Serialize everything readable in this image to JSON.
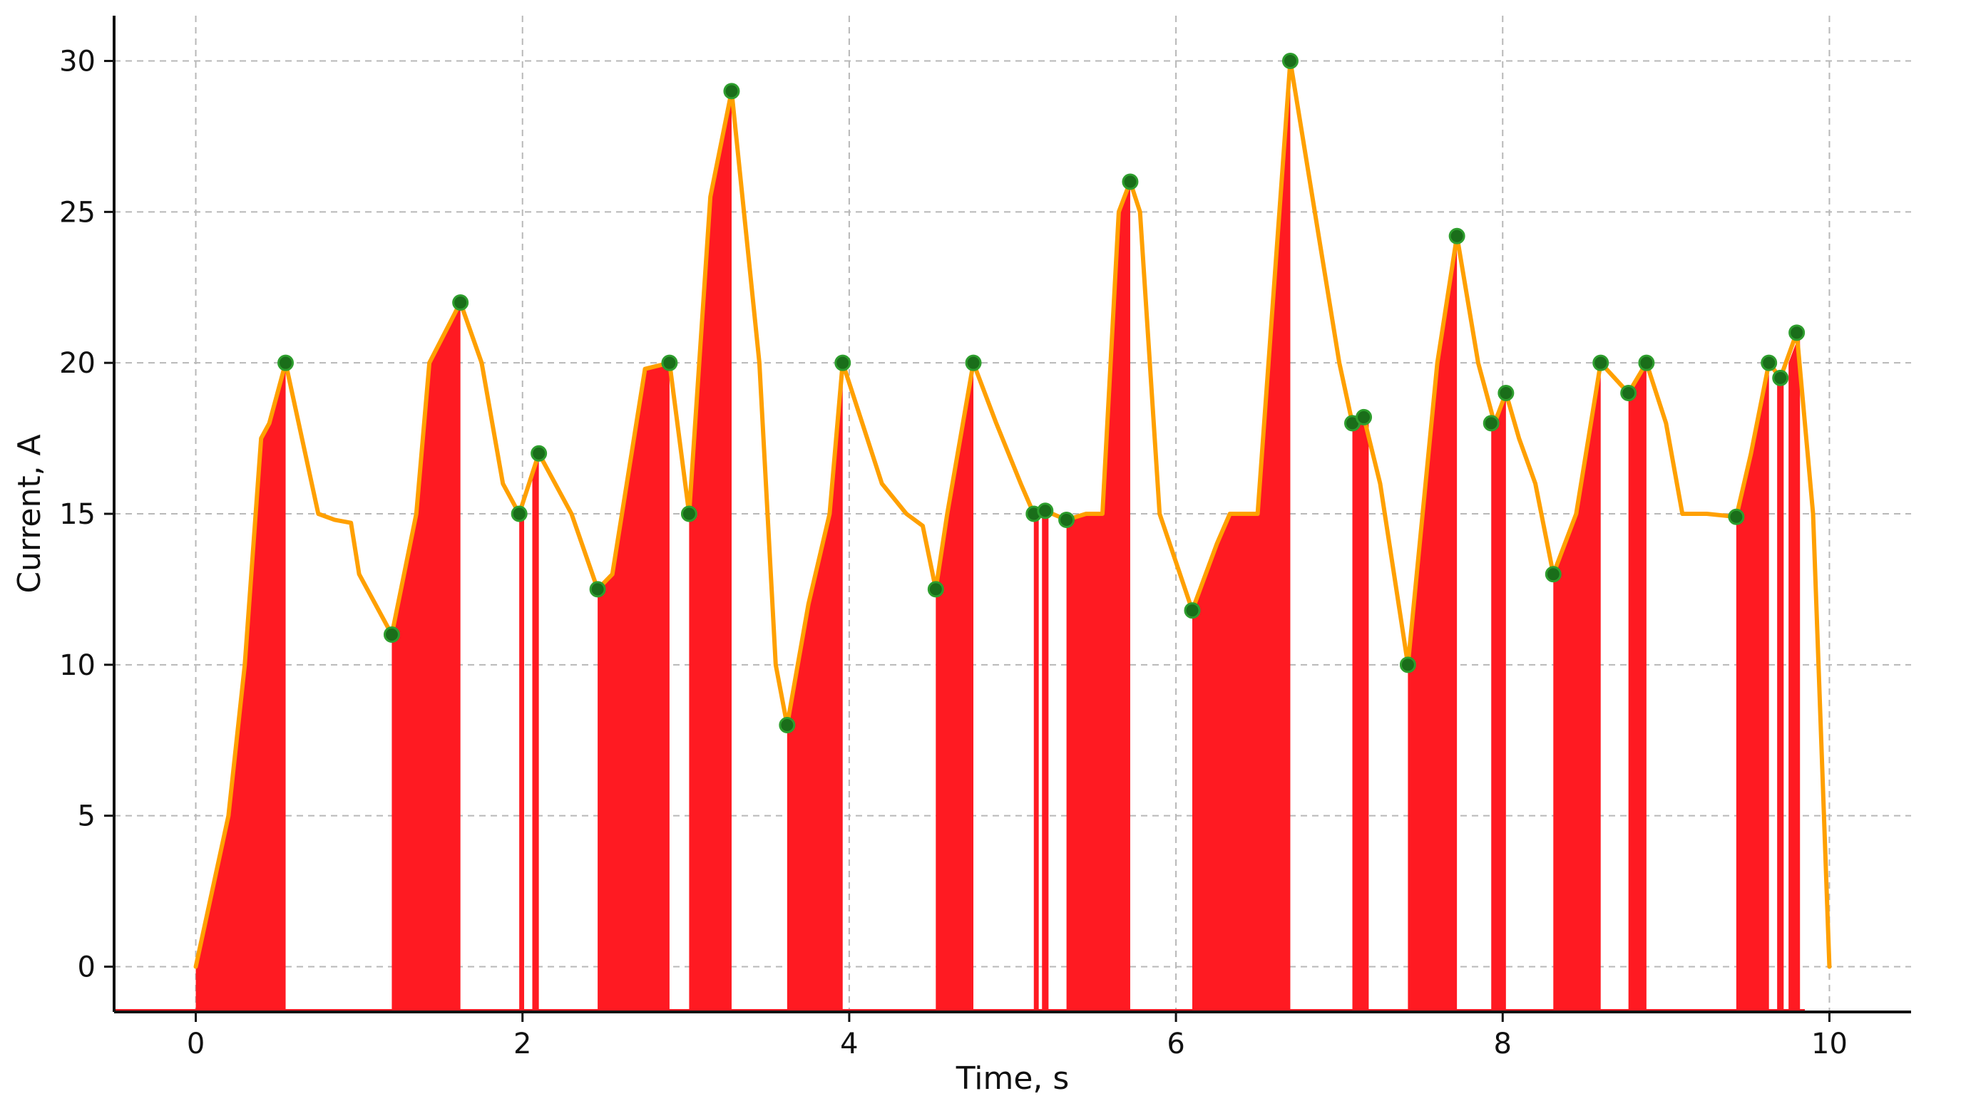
{
  "chart_data": {
    "type": "line",
    "title": "",
    "xlabel": "Time, s",
    "ylabel": "Current, A",
    "xlim": [
      -0.5,
      10.5
    ],
    "ylim": [
      -1.5,
      31.5
    ],
    "xticks": [
      0,
      2,
      4,
      6,
      8,
      10
    ],
    "xtick_labels": [
      "0",
      "2",
      "4",
      "6",
      "8",
      "10"
    ],
    "yticks": [
      0,
      5,
      10,
      15,
      20,
      25,
      30
    ],
    "ytick_labels": [
      "0",
      "5",
      "10",
      "15",
      "20",
      "25",
      "30"
    ],
    "grid": true,
    "legend": "none",
    "series": [
      {
        "kind": "line",
        "color": "#FFA000",
        "x": [
          0.0,
          0.1,
          0.2,
          0.3,
          0.4,
          0.45,
          0.55,
          0.65,
          0.75,
          0.85,
          0.95,
          1.0,
          1.1,
          1.2,
          1.35,
          1.43,
          1.62,
          1.75,
          1.88,
          1.98,
          2.1,
          2.3,
          2.46,
          2.55,
          2.75,
          2.9,
          3.02,
          3.15,
          3.28,
          3.45,
          3.55,
          3.62,
          3.75,
          3.88,
          3.96,
          4.05,
          4.2,
          4.35,
          4.45,
          4.53,
          4.6,
          4.76,
          4.9,
          5.05,
          5.13,
          5.2,
          5.33,
          5.45,
          5.55,
          5.65,
          5.72,
          5.78,
          5.9,
          6.1,
          6.25,
          6.33,
          6.5,
          6.7,
          6.85,
          7.0,
          7.08,
          7.15,
          7.25,
          7.42,
          7.6,
          7.72,
          7.85,
          7.95,
          8.02,
          8.1,
          8.2,
          8.31,
          8.45,
          8.6,
          8.77,
          8.88,
          9.0,
          9.1,
          9.25,
          9.43,
          9.52,
          9.63,
          9.7,
          9.8,
          9.9,
          10.0
        ],
        "y": [
          0,
          2.5,
          5,
          10,
          17.5,
          18,
          20,
          17.5,
          15,
          14.8,
          14.7,
          13,
          12,
          11,
          15,
          20,
          22,
          20,
          16,
          15,
          17,
          15,
          12.5,
          13,
          19.8,
          20,
          15,
          25.5,
          29,
          20,
          10,
          8,
          12,
          15,
          20,
          18.5,
          16,
          15,
          14.6,
          12.5,
          15,
          20,
          18,
          16,
          15,
          15.1,
          14.8,
          15,
          15,
          25,
          26,
          25,
          15,
          11.8,
          14,
          15,
          15,
          30,
          25,
          20,
          18,
          18.2,
          16,
          10,
          20,
          24.2,
          20,
          18,
          19,
          17.5,
          16,
          13,
          15,
          20,
          19,
          20,
          18,
          15,
          15,
          14.9,
          17,
          20,
          19.5,
          21,
          15,
          0
        ]
      },
      {
        "kind": "filled_region",
        "color": "#FF1A22",
        "baseline": -1.5,
        "segments": [
          {
            "x": [
              0.0,
              0.1,
              0.2,
              0.3,
              0.4,
              0.45,
              0.55
            ],
            "y": [
              0,
              2.5,
              5,
              10,
              17.5,
              18,
              20
            ]
          },
          {
            "x": [
              1.2,
              1.35,
              1.43,
              1.62
            ],
            "y": [
              11,
              15,
              20,
              22
            ]
          },
          {
            "x": [
              1.98,
              2.01
            ],
            "y": [
              15,
              15
            ]
          },
          {
            "x": [
              2.06,
              2.1
            ],
            "y": [
              16.5,
              17
            ]
          },
          {
            "x": [
              2.46,
              2.55,
              2.75,
              2.9
            ],
            "y": [
              12.5,
              13,
              19.8,
              20
            ]
          },
          {
            "x": [
              3.02,
              3.15,
              3.28
            ],
            "y": [
              15,
              25.5,
              29
            ]
          },
          {
            "x": [
              3.62,
              3.75,
              3.88,
              3.96
            ],
            "y": [
              8,
              12,
              15,
              20
            ]
          },
          {
            "x": [
              4.53,
              4.6,
              4.76
            ],
            "y": [
              12.5,
              15,
              20
            ]
          },
          {
            "x": [
              5.13,
              5.16
            ],
            "y": [
              15,
              15
            ]
          },
          {
            "x": [
              5.18,
              5.22
            ],
            "y": [
              15.1,
              15.1
            ]
          },
          {
            "x": [
              5.33,
              5.45,
              5.55,
              5.65,
              5.72
            ],
            "y": [
              14.8,
              15,
              15,
              25,
              26
            ]
          },
          {
            "x": [
              6.1,
              6.25,
              6.33,
              6.5,
              6.7
            ],
            "y": [
              11.8,
              14,
              15,
              15,
              30
            ]
          },
          {
            "x": [
              7.08,
              7.18
            ],
            "y": [
              18,
              18.2
            ]
          },
          {
            "x": [
              7.42,
              7.6,
              7.72
            ],
            "y": [
              10,
              20,
              24.2
            ]
          },
          {
            "x": [
              7.93,
              8.02
            ],
            "y": [
              18,
              19
            ]
          },
          {
            "x": [
              8.31,
              8.45,
              8.6
            ],
            "y": [
              13,
              15,
              20
            ]
          },
          {
            "x": [
              8.77,
              8.88
            ],
            "y": [
              19,
              20
            ]
          },
          {
            "x": [
              9.43,
              9.52,
              9.63
            ],
            "y": [
              14.9,
              17,
              20
            ]
          },
          {
            "x": [
              9.68,
              9.72
            ],
            "y": [
              19.5,
              19.5
            ]
          },
          {
            "x": [
              9.75,
              9.82
            ],
            "y": [
              20,
              21
            ]
          }
        ]
      },
      {
        "kind": "scatter",
        "color": "#1A6E1A",
        "edgecolor": "#2E9E2E",
        "x": [
          0.55,
          1.2,
          1.62,
          1.98,
          2.1,
          2.46,
          2.9,
          3.02,
          3.28,
          3.62,
          3.96,
          4.53,
          4.76,
          5.13,
          5.2,
          5.33,
          5.72,
          6.1,
          6.7,
          7.08,
          7.15,
          7.42,
          7.72,
          7.93,
          8.02,
          8.31,
          8.6,
          8.77,
          8.88,
          9.43,
          9.63,
          9.7,
          9.8
        ],
        "y": [
          20,
          11,
          22,
          15,
          17,
          12.5,
          20,
          15,
          29,
          8,
          20,
          12.5,
          20,
          15,
          15.1,
          14.8,
          26,
          11.8,
          30,
          18,
          18.2,
          10,
          24.2,
          18,
          19,
          13,
          20,
          19,
          20,
          14.9,
          20,
          19.5,
          21
        ]
      }
    ]
  }
}
